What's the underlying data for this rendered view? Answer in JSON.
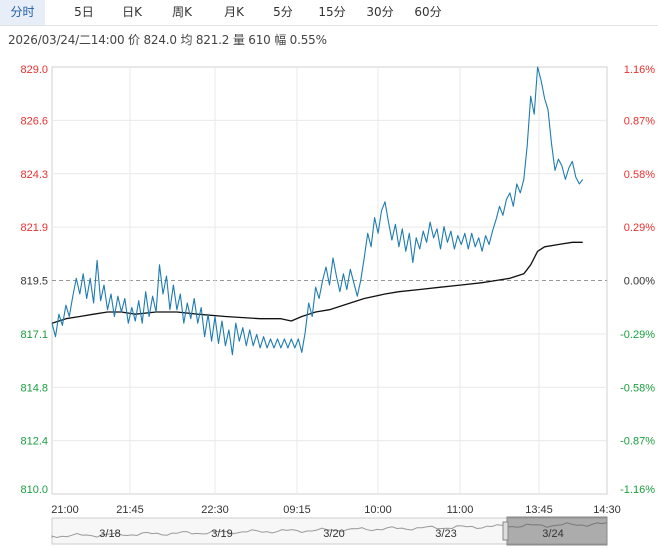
{
  "tabs": [
    "分时",
    "5日",
    "日K",
    "周K",
    "月K",
    "5分",
    "15分",
    "30分",
    "60分"
  ],
  "active_tab": 0,
  "info": {
    "datetime": "2026/03/24/二14:00",
    "price_label": "价",
    "price": "824.0",
    "avg_label": "均",
    "avg": "821.2",
    "vol_label": "量",
    "vol": "610",
    "change_label": "幅",
    "change": "0.55%"
  },
  "colors": {
    "up": "#e8312f",
    "down": "#1b9e3e",
    "neutral": "#333333",
    "price_line": "#1f7cb0",
    "avg_line": "#111111",
    "grid": "#e9e9e9",
    "ref_line": "#999999"
  },
  "chart_data": {
    "type": "line",
    "prev_close": 819.5,
    "ylim": [
      810.0,
      829.0
    ],
    "left_ticks": [
      "829.0",
      "826.6",
      "824.3",
      "821.9",
      "819.5",
      "817.1",
      "814.8",
      "812.4",
      "810.0"
    ],
    "right_ticks": [
      "1.16%",
      "0.87%",
      "0.58%",
      "0.29%",
      "0.00%",
      "-0.29%",
      "-0.58%",
      "-0.87%",
      "-1.16%"
    ],
    "x_ticks": [
      "21:00",
      "21:45",
      "22:30",
      "09:15",
      "10:00",
      "11:00",
      "13:45",
      "14:30"
    ],
    "series": [
      {
        "name": "价",
        "points": [
          [
            0,
            817.6
          ],
          [
            1,
            817.0
          ],
          [
            2,
            818.0
          ],
          [
            3,
            817.5
          ],
          [
            4,
            818.4
          ],
          [
            5,
            817.9
          ],
          [
            6,
            818.8
          ],
          [
            7,
            819.6
          ],
          [
            8,
            818.9
          ],
          [
            9,
            819.8
          ],
          [
            10,
            818.7
          ],
          [
            11,
            819.6
          ],
          [
            12,
            818.5
          ],
          [
            13,
            820.4
          ],
          [
            14,
            818.6
          ],
          [
            15,
            819.3
          ],
          [
            16,
            818.2
          ],
          [
            17,
            818.9
          ],
          [
            18,
            817.9
          ],
          [
            19,
            818.8
          ],
          [
            20,
            818.1
          ],
          [
            21,
            818.7
          ],
          [
            22,
            817.6
          ],
          [
            23,
            818.3
          ],
          [
            24,
            817.7
          ],
          [
            25,
            818.6
          ],
          [
            26,
            817.6
          ],
          [
            27,
            819.0
          ],
          [
            28,
            817.9
          ],
          [
            29,
            818.8
          ],
          [
            30,
            818.1
          ],
          [
            31,
            820.2
          ],
          [
            32,
            818.9
          ],
          [
            33,
            819.7
          ],
          [
            34,
            818.2
          ],
          [
            35,
            819.3
          ],
          [
            36,
            818.2
          ],
          [
            37,
            818.9
          ],
          [
            38,
            817.6
          ],
          [
            39,
            818.5
          ],
          [
            40,
            817.8
          ],
          [
            41,
            818.7
          ],
          [
            42,
            817.6
          ],
          [
            43,
            818.3
          ],
          [
            44,
            817.0
          ],
          [
            45,
            818.0
          ],
          [
            46,
            816.8
          ],
          [
            47,
            817.9
          ],
          [
            48,
            816.7
          ],
          [
            49,
            817.7
          ],
          [
            50,
            816.6
          ],
          [
            51,
            817.3
          ],
          [
            52,
            816.2
          ],
          [
            53,
            817.6
          ],
          [
            54,
            816.8
          ],
          [
            55,
            817.4
          ],
          [
            56,
            816.6
          ],
          [
            57,
            817.3
          ],
          [
            58,
            816.6
          ],
          [
            59,
            817.1
          ],
          [
            60,
            816.5
          ],
          [
            61,
            817.0
          ],
          [
            62,
            816.5
          ],
          [
            63,
            816.9
          ],
          [
            64,
            816.5
          ],
          [
            65,
            816.9
          ],
          [
            66,
            816.5
          ],
          [
            67,
            816.9
          ],
          [
            68,
            816.5
          ],
          [
            69,
            816.9
          ],
          [
            70,
            816.5
          ],
          [
            71,
            816.9
          ],
          [
            72,
            816.3
          ],
          [
            73,
            817.2
          ],
          [
            74,
            818.5
          ],
          [
            75,
            817.9
          ],
          [
            76,
            819.2
          ],
          [
            77,
            818.7
          ],
          [
            78,
            819.5
          ],
          [
            79,
            820.1
          ],
          [
            80,
            819.3
          ],
          [
            81,
            820.5
          ],
          [
            82,
            819.7
          ],
          [
            83,
            819.0
          ],
          [
            84,
            819.8
          ],
          [
            85,
            819.1
          ],
          [
            86,
            820.0
          ],
          [
            87,
            819.4
          ],
          [
            88,
            818.8
          ],
          [
            89,
            819.5
          ],
          [
            90,
            820.5
          ],
          [
            91,
            821.6
          ],
          [
            92,
            821.0
          ],
          [
            93,
            822.3
          ],
          [
            94,
            821.6
          ],
          [
            95,
            822.6
          ],
          [
            96,
            823.0
          ],
          [
            97,
            822.1
          ],
          [
            98,
            821.3
          ],
          [
            99,
            822.0
          ],
          [
            100,
            821.0
          ],
          [
            101,
            821.8
          ],
          [
            102,
            820.8
          ],
          [
            103,
            821.6
          ],
          [
            104,
            820.3
          ],
          [
            105,
            821.4
          ],
          [
            106,
            820.9
          ],
          [
            107,
            821.7
          ],
          [
            108,
            821.2
          ],
          [
            109,
            822.1
          ],
          [
            110,
            821.4
          ],
          [
            111,
            821.8
          ],
          [
            112,
            820.9
          ],
          [
            113,
            821.9
          ],
          [
            114,
            821.2
          ],
          [
            115,
            821.7
          ],
          [
            116,
            820.9
          ],
          [
            117,
            821.5
          ],
          [
            118,
            821.1
          ],
          [
            119,
            821.6
          ],
          [
            120,
            820.9
          ],
          [
            121,
            821.6
          ],
          [
            122,
            821.0
          ],
          [
            123,
            821.4
          ],
          [
            124,
            820.8
          ],
          [
            125,
            821.5
          ],
          [
            126,
            821.1
          ],
          [
            127,
            821.7
          ],
          [
            128,
            822.2
          ],
          [
            129,
            822.8
          ],
          [
            130,
            822.4
          ],
          [
            131,
            823.1
          ],
          [
            132,
            823.4
          ],
          [
            133,
            822.8
          ],
          [
            134,
            823.8
          ],
          [
            135,
            823.4
          ],
          [
            136,
            824.0
          ],
          [
            137,
            825.5
          ],
          [
            138,
            827.7
          ],
          [
            139,
            826.9
          ],
          [
            140,
            829.0
          ],
          [
            141,
            828.4
          ],
          [
            142,
            827.6
          ],
          [
            143,
            827.1
          ],
          [
            144,
            825.6
          ],
          [
            145,
            824.4
          ],
          [
            146,
            824.9
          ],
          [
            147,
            824.6
          ],
          [
            148,
            824.0
          ],
          [
            149,
            824.5
          ],
          [
            150,
            824.8
          ],
          [
            151,
            824.1
          ],
          [
            152,
            823.8
          ],
          [
            153,
            824.0
          ]
        ]
      },
      {
        "name": "均",
        "points": [
          [
            0,
            817.6
          ],
          [
            4,
            817.8
          ],
          [
            8,
            817.9
          ],
          [
            12,
            818.0
          ],
          [
            16,
            818.1
          ],
          [
            20,
            818.1
          ],
          [
            24,
            818.0
          ],
          [
            30,
            818.1
          ],
          [
            36,
            818.1
          ],
          [
            42,
            818.0
          ],
          [
            50,
            817.9
          ],
          [
            60,
            817.8
          ],
          [
            66,
            817.8
          ],
          [
            69,
            817.7
          ],
          [
            72,
            817.9
          ],
          [
            76,
            818.1
          ],
          [
            80,
            818.2
          ],
          [
            86,
            818.5
          ],
          [
            90,
            818.7
          ],
          [
            96,
            818.9
          ],
          [
            100,
            819.0
          ],
          [
            106,
            819.1
          ],
          [
            112,
            819.2
          ],
          [
            118,
            819.3
          ],
          [
            124,
            819.4
          ],
          [
            128,
            819.5
          ],
          [
            132,
            819.6
          ],
          [
            136,
            819.8
          ],
          [
            138,
            820.2
          ],
          [
            140,
            820.8
          ],
          [
            142,
            821.0
          ],
          [
            146,
            821.1
          ],
          [
            150,
            821.2
          ],
          [
            153,
            821.2
          ]
        ]
      }
    ],
    "grid": true
  },
  "navigator": {
    "dates": [
      "3/18",
      "3/19",
      "3/20",
      "3/23",
      "3/24"
    ]
  }
}
